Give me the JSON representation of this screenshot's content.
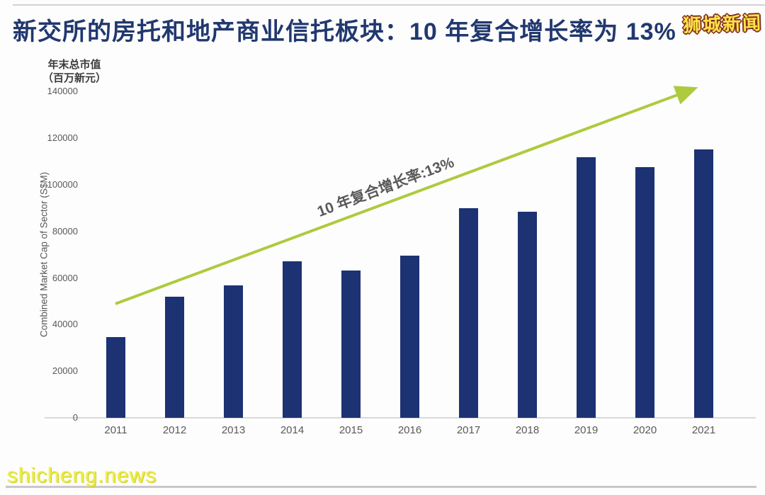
{
  "page": {
    "title": "新交所的房托和地产商业信托板块：10 年复合增长率为 13%",
    "watermark_top": "狮城新闻",
    "watermark_bottom": "shicheng.news"
  },
  "chart_data": {
    "type": "bar",
    "title": "新交所的房托和地产商业信托板块：10 年复合增长率为 13%",
    "unit_label_line1": "年末总市值",
    "unit_label_line2": "（百万新元）",
    "ylabel": "Combined Market Cap of Sector (S$M)",
    "categories": [
      "2011",
      "2012",
      "2013",
      "2014",
      "2015",
      "2016",
      "2017",
      "2018",
      "2019",
      "2020",
      "2021"
    ],
    "values": [
      34600,
      52100,
      56900,
      67300,
      63100,
      69700,
      90000,
      88600,
      111900,
      107600,
      115200
    ],
    "yticks": [
      0,
      20000,
      40000,
      60000,
      80000,
      100000,
      120000,
      140000
    ],
    "ylim": [
      0,
      140000
    ],
    "grid": false,
    "legend_position": "none",
    "annotation": "10 年复合增长率:13%",
    "annotation_meaning": "10-year CAGR: 13%",
    "bar_color": "#1d3273",
    "arrow_color": "#aeca3e",
    "axis_line_color": "#d9d9d9"
  }
}
